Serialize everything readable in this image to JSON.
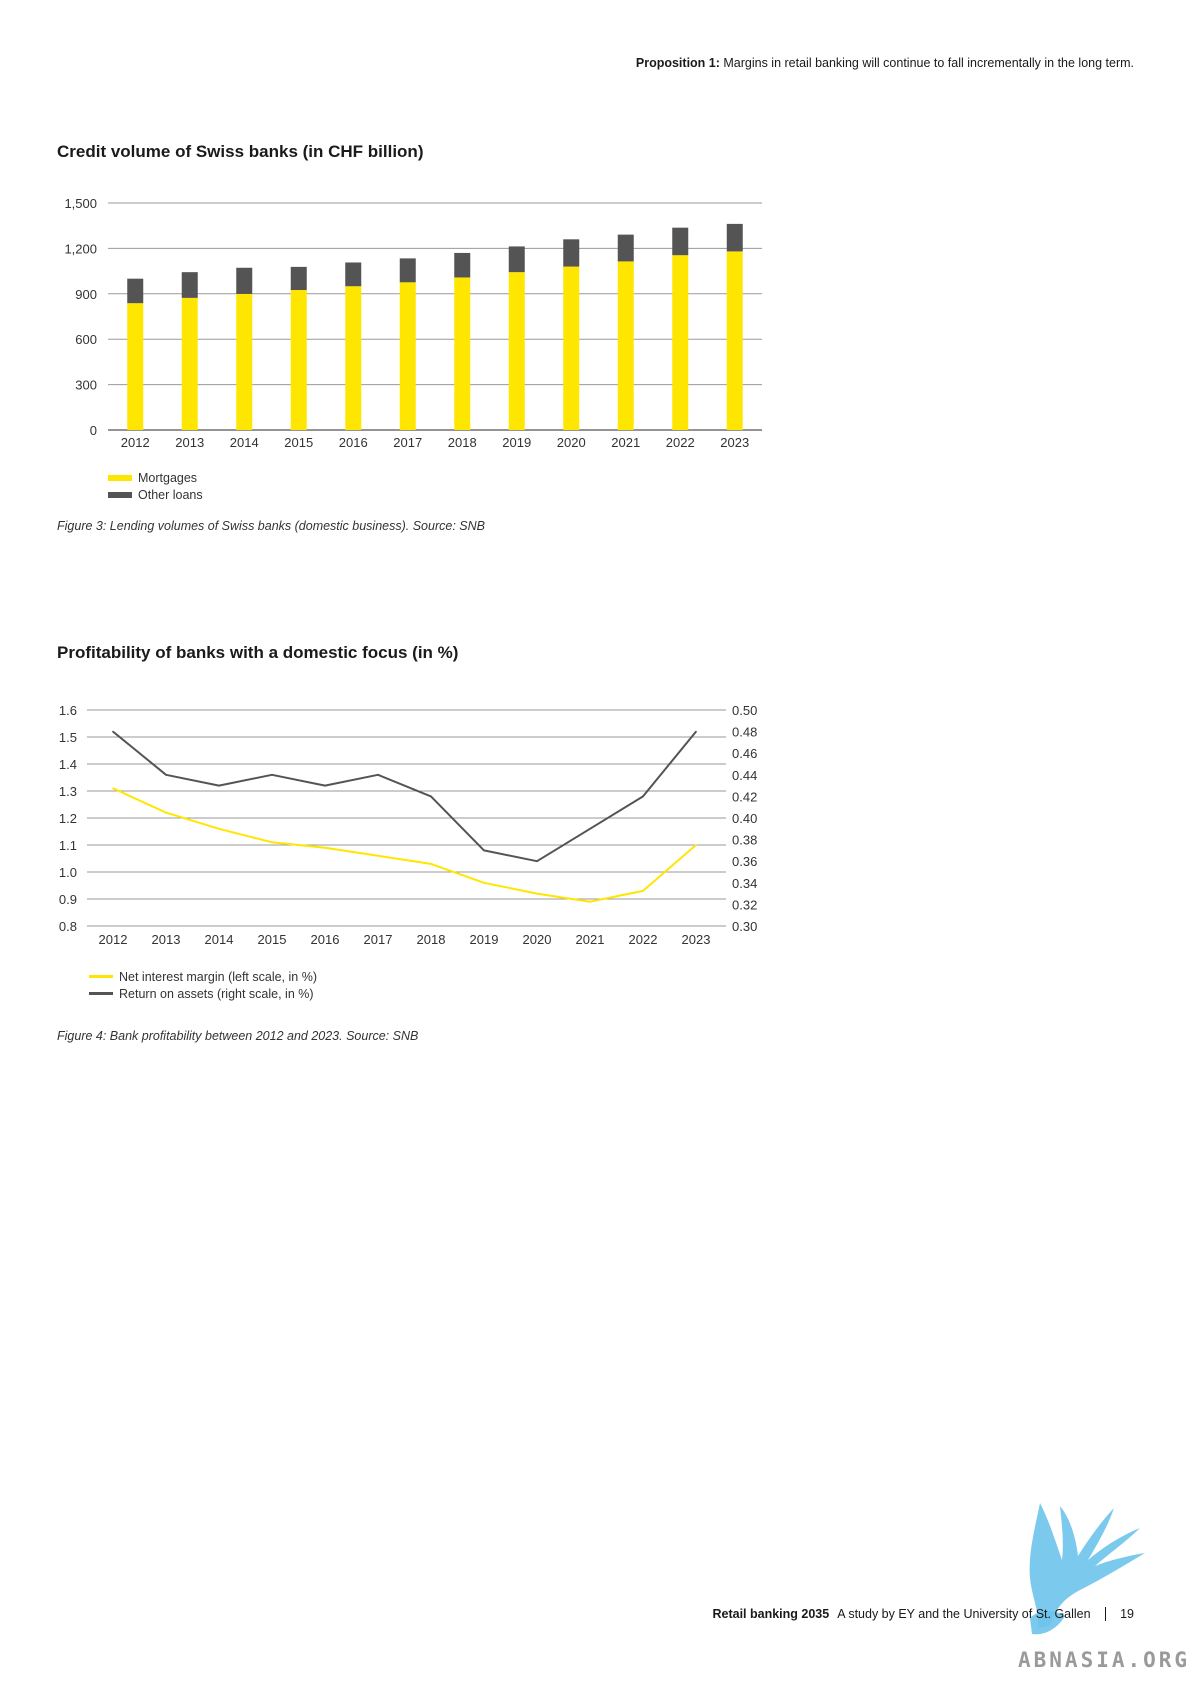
{
  "header": {
    "bold": "Proposition 1:",
    "text": " Margins in retail banking will continue to fall incrementally in the long term."
  },
  "figure3": {
    "title": "Credit volume of Swiss banks (in CHF billion)",
    "caption": "Figure 3: Lending volumes of Swiss banks (domestic business). Source: SNB",
    "legend": [
      {
        "label": "Mortgages",
        "color": "#ffe600"
      },
      {
        "label": "Other loans",
        "color": "#545454"
      }
    ]
  },
  "figure4": {
    "title": "Profitability of banks with a domestic focus (in %)",
    "caption": "Figure 4: Bank profitability between 2012 and 2023. Source: SNB",
    "legend": [
      {
        "label": "Net interest margin (left scale, in %)",
        "color": "#ffe600"
      },
      {
        "label": "Return on assets (right scale, in %)",
        "color": "#545454"
      }
    ]
  },
  "chart_data": [
    {
      "type": "bar",
      "stacked": true,
      "title": "Credit volume of Swiss banks (in CHF billion)",
      "categories": [
        "2012",
        "2013",
        "2014",
        "2015",
        "2016",
        "2017",
        "2018",
        "2019",
        "2020",
        "2021",
        "2022",
        "2023"
      ],
      "series": [
        {
          "name": "Mortgages",
          "color": "#ffe600",
          "values": [
            838,
            873,
            899,
            925,
            950,
            976,
            1008,
            1043,
            1080,
            1114,
            1155,
            1180
          ]
        },
        {
          "name": "Other loans",
          "color": "#545454",
          "values": [
            162,
            170,
            173,
            153,
            157,
            158,
            162,
            170,
            180,
            177,
            182,
            182
          ]
        }
      ],
      "ylim": [
        0,
        1500
      ],
      "yticks": [
        0,
        300,
        600,
        900,
        1200,
        1500
      ],
      "ytick_labels": [
        "0",
        "300",
        "600",
        "900",
        "1,200",
        "1,500"
      ],
      "grid": true,
      "legend_position": "bottom-left"
    },
    {
      "type": "line",
      "title": "Profitability of banks with a domestic focus (in %)",
      "x": [
        "2012",
        "2013",
        "2014",
        "2015",
        "2016",
        "2017",
        "2018",
        "2019",
        "2020",
        "2021",
        "2022",
        "2023"
      ],
      "series": [
        {
          "name": "Net interest margin (left scale, in %)",
          "axis": "left",
          "color": "#ffe600",
          "values": [
            1.31,
            1.22,
            1.16,
            1.11,
            1.09,
            1.06,
            1.03,
            0.96,
            0.92,
            0.89,
            0.93,
            1.1
          ]
        },
        {
          "name": "Return on assets (right scale, in %)",
          "axis": "right",
          "color": "#545454",
          "values": [
            0.48,
            0.44,
            0.43,
            0.44,
            0.43,
            0.44,
            0.42,
            0.37,
            0.36,
            0.39,
            0.42,
            0.48
          ]
        }
      ],
      "ylim_left": [
        0.8,
        1.6
      ],
      "yticks_left": [
        "1.6",
        "1.5",
        "1.4",
        "1.3",
        "1.2",
        "1.1",
        "1.0",
        "0.9",
        "0.8"
      ],
      "ylim_right": [
        0.3,
        0.5
      ],
      "yticks_right": [
        "0.50",
        "0.48",
        "0.46",
        "0.44",
        "0.42",
        "0.40",
        "0.38",
        "0.36",
        "0.34",
        "0.32",
        "0.30"
      ],
      "grid": true,
      "legend_position": "bottom-left"
    }
  ],
  "footer": {
    "title": "Retail banking 2035",
    "subtitle": "A study by EY and the University of St. Gallen",
    "page": "19"
  },
  "watermark": {
    "text": "ABNASIA.ORG"
  }
}
